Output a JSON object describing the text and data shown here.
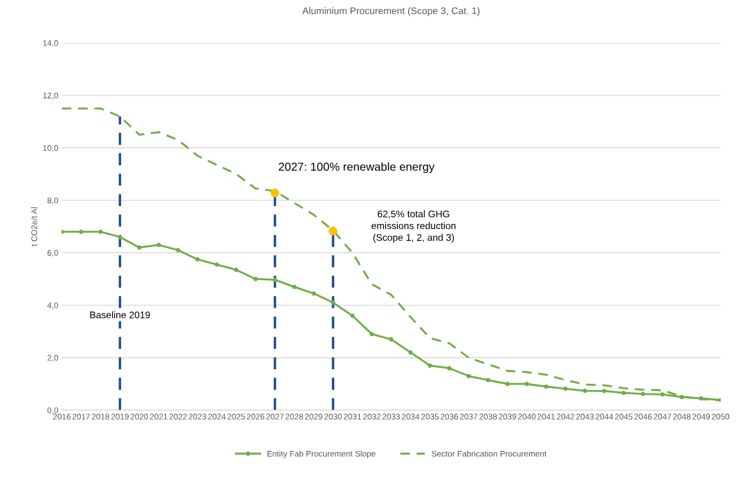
{
  "chart_data": {
    "type": "line",
    "title": "Aluminium Procurement (Scope 3, Cat. 1)",
    "ylabel": "t CO2e/t Al",
    "x": [
      2016,
      2017,
      2018,
      2019,
      2020,
      2021,
      2022,
      2023,
      2024,
      2025,
      2026,
      2027,
      2028,
      2029,
      2030,
      2031,
      2032,
      2033,
      2034,
      2035,
      2036,
      2037,
      2038,
      2039,
      2040,
      2041,
      2042,
      2043,
      2044,
      2045,
      2046,
      2047,
      2048,
      2049,
      2050
    ],
    "xlim": [
      2016,
      2050
    ],
    "xticks": [
      2016,
      2017,
      2018,
      2019,
      2020,
      2021,
      2022,
      2023,
      2024,
      2025,
      2026,
      2027,
      2028,
      2029,
      2030,
      2031,
      2032,
      2033,
      2034,
      2035,
      2036,
      2037,
      2038,
      2039,
      2040,
      2041,
      2042,
      2043,
      2044,
      2045,
      2046,
      2047,
      2048,
      2049,
      2050
    ],
    "ylim": [
      0,
      14
    ],
    "yticks": [
      {
        "value": 0,
        "label": "0,0"
      },
      {
        "value": 2,
        "label": "2,0"
      },
      {
        "value": 4,
        "label": "4,0"
      },
      {
        "value": 6,
        "label": "6,0"
      },
      {
        "value": 8,
        "label": "8,0"
      },
      {
        "value": 10,
        "label": "10,0"
      },
      {
        "value": 12,
        "label": "12,0"
      },
      {
        "value": 14,
        "label": "14,0"
      }
    ],
    "series": [
      {
        "name": "Entity Fab Procurement Slope",
        "color": "#70ad47",
        "marker": "circle",
        "line_style": "solid",
        "values": [
          6.8,
          6.8,
          6.8,
          6.6,
          6.2,
          6.3,
          6.1,
          5.75,
          5.55,
          5.35,
          5.0,
          4.97,
          4.7,
          4.45,
          4.1,
          3.6,
          2.9,
          2.7,
          2.2,
          1.7,
          1.6,
          1.3,
          1.15,
          1.0,
          1.0,
          0.9,
          0.82,
          0.74,
          0.73,
          0.66,
          0.62,
          0.6,
          0.5,
          0.45,
          0.39
        ]
      },
      {
        "name": "Sector Fabrication Procurement",
        "color": "#70ad47",
        "marker": "none",
        "line_style": "dashed",
        "values": [
          11.5,
          11.5,
          11.5,
          11.2,
          10.5,
          10.6,
          10.3,
          9.7,
          9.35,
          9.0,
          8.45,
          8.35,
          7.9,
          7.45,
          6.85,
          6.0,
          4.8,
          4.4,
          3.55,
          2.75,
          2.55,
          2.0,
          1.75,
          1.5,
          1.45,
          1.35,
          1.15,
          0.98,
          0.95,
          0.84,
          0.78,
          0.76,
          0.52,
          0.42,
          0.38
        ]
      },
      {
        "type": "scatter",
        "color": "#ffc000",
        "marker": "circle",
        "x": [
          2027,
          2030
        ],
        "values": [
          8.28,
          6.83
        ]
      }
    ],
    "ref_lines": [
      {
        "axis": "x",
        "value": 2019,
        "color": "#1f4e8c",
        "line_style": "dashed"
      },
      {
        "axis": "x",
        "value": 2027,
        "color": "#1f4e8c",
        "line_style": "dashed"
      },
      {
        "axis": "x",
        "value": 2030,
        "color": "#1f4e8c",
        "line_style": "dashed"
      }
    ],
    "annotations": [
      {
        "text": "Baseline 2019",
        "x": 2019,
        "y": 3.6
      },
      "2027: 100% renewable energy",
      "62,5% total GHG\nemissions reduction\n(Scope 1, 2, and 3)"
    ],
    "grid": "y",
    "legend": "bottom"
  }
}
